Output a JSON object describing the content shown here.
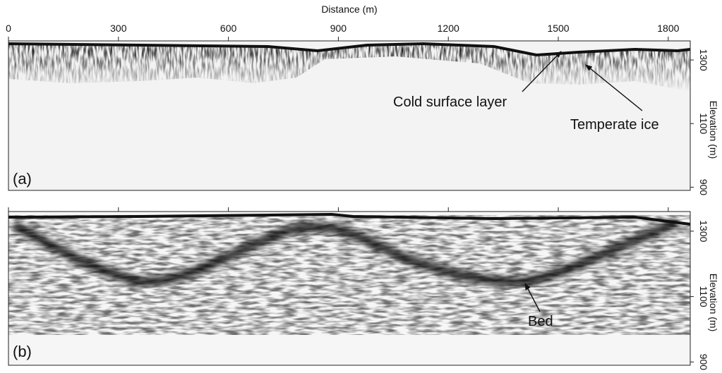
{
  "chart_data": [
    {
      "type": "radargram",
      "panel_label": "(a)",
      "xlabel": "Distance (m)",
      "ylabel": "Elevation (m)",
      "xlim": [
        0,
        1860
      ],
      "xticks": [
        0,
        300,
        600,
        900,
        1200,
        1500,
        1800
      ],
      "ylim": [
        1360,
        890
      ],
      "yticks": [
        1300,
        1100,
        900
      ],
      "annotations": [
        "Cold surface layer",
        "Temperate ice"
      ]
    },
    {
      "type": "radargram",
      "panel_label": "(b)",
      "ylabel": "Elevation (m)",
      "xlim": [
        0,
        1860
      ],
      "ylim": [
        1360,
        890
      ],
      "yticks": [
        1300,
        1100,
        900
      ],
      "annotations": [
        "Bed"
      ]
    }
  ]
}
